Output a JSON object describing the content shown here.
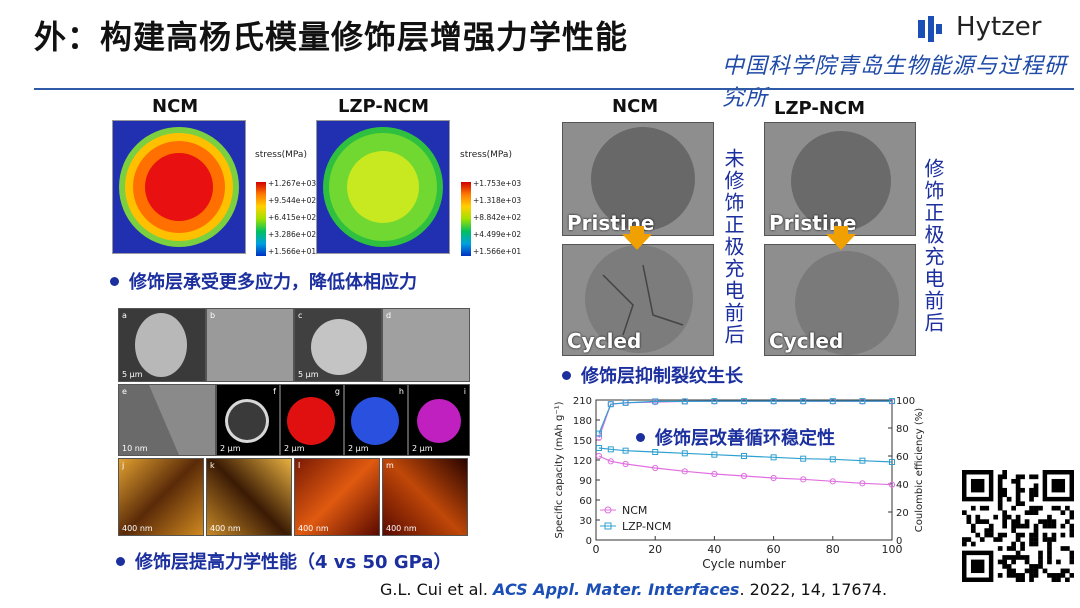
{
  "slide": {
    "title": "外：构建高杨氏模量修饰层增强力学性能",
    "logo_text": "Hytzer",
    "institute": "中国科学院青岛生物能源与过程研究所"
  },
  "stress_maps": {
    "left_label": "NCM",
    "right_label": "LZP-NCM",
    "legend_title": "stress(MPa)",
    "left_legend": [
      "+1.267e+03",
      "+9.544e+02",
      "+6.415e+02",
      "+3.286e+02",
      "+1.566e+01"
    ],
    "right_legend": [
      "+1.753e+03",
      "+1.318e+03",
      "+8.842e+02",
      "+4.499e+02",
      "+1.566e+01"
    ]
  },
  "bullets": {
    "stress": "修饰层承受更多应力，降低体相应力",
    "modulus": "修饰层提高力学性能（4 vs 50 GPa）",
    "crack": "修饰层抑制裂纹生长",
    "cycle": "修饰层改善循环稳定性"
  },
  "micro_grid": {
    "row1_labels": [
      "a",
      "b",
      "c",
      "d"
    ],
    "row1_scale": [
      "5 μm",
      "",
      "5 μm",
      ""
    ],
    "row2_labels": [
      "e",
      "f",
      "g",
      "h",
      "i"
    ],
    "row2_scale": [
      "10 nm",
      "2 μm",
      "2 μm",
      "2 μm",
      "2 μm"
    ],
    "row3_labels": [
      "j",
      "k",
      "l",
      "m"
    ],
    "row3_scale": [
      "400 nm",
      "400 nm",
      "400 nm",
      "400 nm"
    ]
  },
  "sem": {
    "left_label": "NCM",
    "right_label": "LZP-NCM",
    "pristine": "Pristine",
    "cycled": "Cycled",
    "left_side_text": "未修饰正极充电前后",
    "right_side_text": "修饰正极充电前后"
  },
  "chart_data": {
    "type": "scatter",
    "xlabel": "Cycle number",
    "ylabel": "Specific capacity (mAh g⁻¹)",
    "y2label": "Coulombic efficiency (%)",
    "xlim": [
      0,
      100
    ],
    "ylim": [
      0,
      210
    ],
    "y2lim": [
      0,
      100
    ],
    "xticks": [
      "0",
      "20",
      "40",
      "60",
      "80",
      "100"
    ],
    "yticks": [
      "0",
      "30",
      "60",
      "90",
      "120",
      "150",
      "180",
      "210"
    ],
    "y2ticks": [
      "0",
      "20",
      "40",
      "60",
      "80",
      "100"
    ],
    "legend": [
      "NCM",
      "LZP-NCM"
    ],
    "series": [
      {
        "name": "NCM",
        "color": "#e070e0",
        "axis": "left",
        "x": [
          1,
          5,
          10,
          20,
          30,
          40,
          50,
          60,
          70,
          80,
          90,
          100
        ],
        "values": [
          126,
          118,
          114,
          108,
          103,
          99,
          96,
          93,
          91,
          88,
          85,
          83
        ]
      },
      {
        "name": "LZP-NCM",
        "color": "#30a0d0",
        "axis": "left",
        "x": [
          1,
          5,
          10,
          20,
          30,
          40,
          50,
          60,
          70,
          80,
          90,
          100
        ],
        "values": [
          138,
          136,
          134,
          132,
          130,
          128,
          126,
          124,
          122,
          121,
          119,
          117
        ]
      },
      {
        "name": "NCM CE",
        "color": "#e070e0",
        "axis": "right",
        "x": [
          1,
          5,
          10,
          20,
          30,
          40,
          50,
          60,
          70,
          80,
          90,
          100
        ],
        "values": [
          73,
          97,
          98,
          98.5,
          99,
          99,
          99,
          99,
          99,
          99,
          99,
          99
        ]
      },
      {
        "name": "LZP-NCM CE",
        "color": "#30a0d0",
        "axis": "right",
        "x": [
          1,
          5,
          10,
          20,
          30,
          40,
          50,
          60,
          70,
          80,
          90,
          100
        ],
        "values": [
          76,
          97,
          98,
          99,
          99,
          99.2,
          99.2,
          99.2,
          99.2,
          99.2,
          99.2,
          99.2
        ]
      }
    ]
  },
  "citation": {
    "authors": "G.L. Cui et al.",
    "journal": "ACS Appl. Mater. Interfaces",
    "rest": ". 2022, 14, 17674."
  }
}
